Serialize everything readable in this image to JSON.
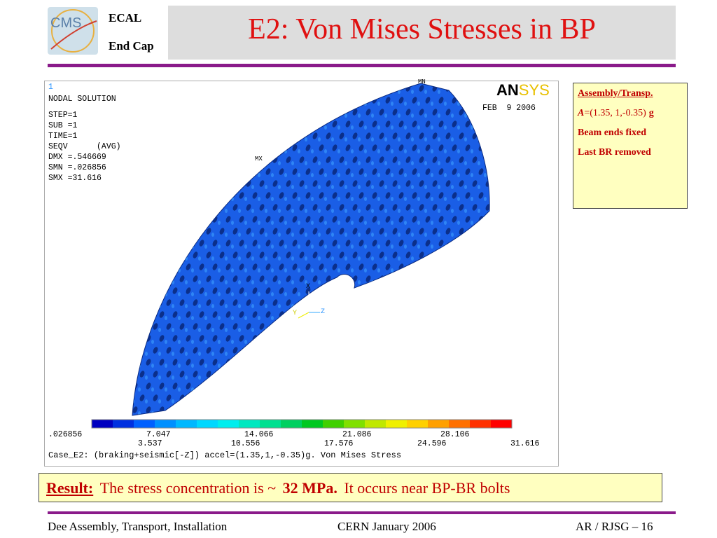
{
  "header": {
    "logo": "CMS",
    "group": [
      "ECAL",
      "End Cap"
    ],
    "title": "E2: Von Mises Stresses in BP"
  },
  "plot": {
    "window": "1",
    "info": [
      "NODAL SOLUTION",
      "STEP=1",
      "SUB =1",
      "TIME=1",
      "SEQV      (AVG)",
      "DMX =.546669",
      "SMN =.026856",
      "SMX =31.616"
    ],
    "brand": {
      "a": "AN",
      "b": "SYS"
    },
    "date": "FEB  9 2006",
    "min_marker": "MN",
    "max_marker": "MX",
    "axes": [
      "X",
      "Y",
      "Z"
    ],
    "legend_top": [
      ".026856",
      "7.047",
      "14.066",
      "21.086",
      "28.106"
    ],
    "legend_bottom": [
      "3.537",
      "10.556",
      "17.576",
      "24.596",
      "31.616"
    ],
    "caption": "Case_E2: (braking+seismic[-Z]) accel=(1.35,1,-0.35)g. Von Mises Stress"
  },
  "side": {
    "heading": "Assembly/Transp.",
    "accel": {
      "symbol": "A",
      "text": "=(1.35, 1,-0.35)",
      "unit": "g"
    },
    "lines": [
      "Beam ends fixed",
      "Last BR removed"
    ]
  },
  "result": {
    "label": "Result:",
    "text": "The stress concentration is ~",
    "value": "32 MPa.",
    "rest": "It occurs near BP-BR bolts"
  },
  "footer": {
    "left": "Dee Assembly, Transport, Installation",
    "center": "CERN  January 2006",
    "right": "AR / RJSG – 16"
  }
}
